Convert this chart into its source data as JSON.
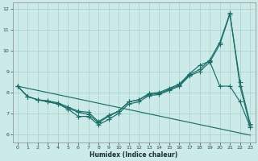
{
  "xlabel": "Humidex (Indice chaleur)",
  "bg_color": "#cceae7",
  "grid_color": "#aad4d0",
  "line_color": "#1a7068",
  "xlim": [
    -0.5,
    23.5
  ],
  "ylim": [
    5.6,
    12.3
  ],
  "xticks": [
    0,
    1,
    2,
    3,
    4,
    5,
    6,
    7,
    8,
    9,
    10,
    11,
    12,
    13,
    14,
    15,
    16,
    17,
    18,
    19,
    20,
    21,
    22,
    23
  ],
  "yticks": [
    6,
    7,
    8,
    9,
    10,
    11,
    12
  ],
  "line1_x": [
    0,
    1,
    2,
    3,
    4,
    5,
    6,
    7,
    8,
    9,
    10,
    11,
    12,
    13,
    14,
    15,
    16,
    17,
    18,
    19,
    20,
    21,
    22,
    23
  ],
  "line1_y": [
    8.3,
    7.8,
    7.65,
    7.55,
    7.45,
    7.2,
    6.85,
    6.85,
    6.45,
    6.7,
    7.0,
    7.45,
    7.55,
    7.85,
    7.9,
    8.1,
    8.3,
    8.8,
    9.0,
    9.45,
    10.3,
    11.75,
    8.5,
    6.5
  ],
  "line2_x": [
    0,
    1,
    2,
    3,
    4,
    5,
    6,
    7,
    8,
    9,
    10,
    11,
    12,
    13,
    14,
    15,
    16,
    17,
    18,
    19,
    20,
    21,
    22,
    23
  ],
  "line2_y": [
    8.3,
    7.8,
    7.65,
    7.55,
    7.45,
    7.25,
    7.05,
    6.95,
    6.55,
    6.85,
    7.1,
    7.55,
    7.65,
    7.9,
    7.95,
    8.15,
    8.35,
    8.85,
    9.1,
    9.55,
    10.4,
    11.8,
    8.3,
    6.4
  ],
  "line3_x": [
    0,
    1,
    2,
    3,
    4,
    5,
    6,
    7,
    8,
    9,
    10,
    11,
    12,
    13,
    14,
    15,
    16,
    17,
    18,
    19,
    20,
    21,
    22,
    23
  ],
  "line3_y": [
    8.3,
    7.8,
    7.65,
    7.6,
    7.5,
    7.3,
    7.1,
    7.05,
    6.6,
    6.9,
    7.1,
    7.55,
    7.65,
    7.95,
    8.0,
    8.2,
    8.4,
    8.9,
    9.3,
    9.5,
    8.3,
    8.3,
    7.55,
    6.35
  ],
  "line4_x": [
    0,
    23
  ],
  "line4_y": [
    8.3,
    5.95
  ]
}
